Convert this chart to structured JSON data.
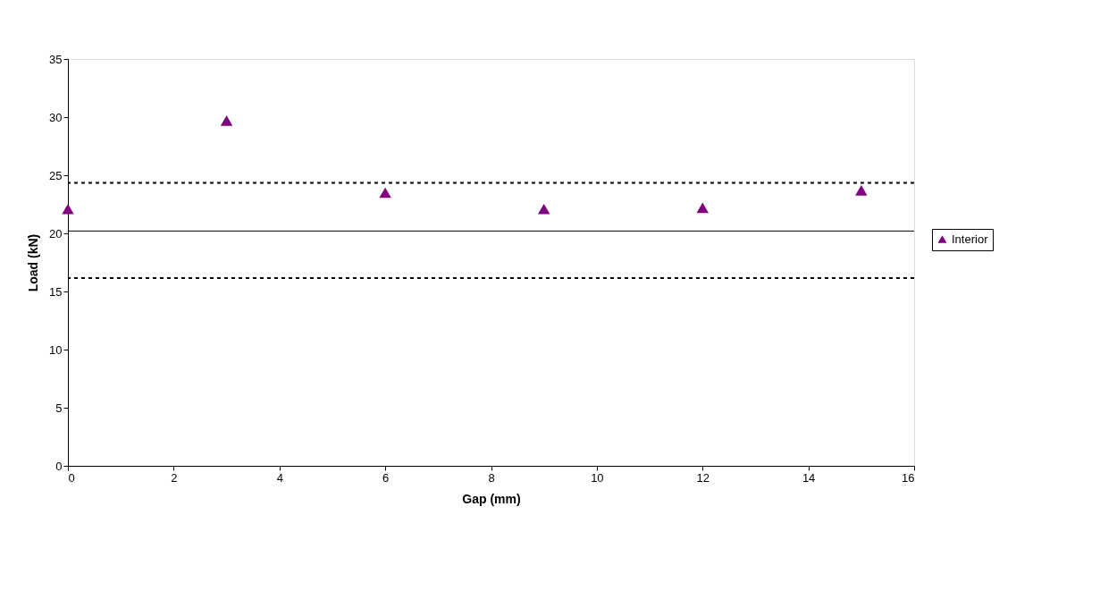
{
  "chart_data": {
    "type": "scatter",
    "xlabel": "Gap (mm)",
    "ylabel": "Load (kN)",
    "x": [
      0,
      3,
      6,
      9,
      12,
      15
    ],
    "series": [
      {
        "name": "Interior",
        "color": "#800080",
        "values": [
          22.1,
          29.7,
          23.5,
          22.1,
          22.2,
          23.7
        ]
      }
    ],
    "marker": "triangle",
    "xlim": [
      0,
      16
    ],
    "xticks": [
      0,
      2,
      4,
      6,
      8,
      10,
      12,
      14,
      16
    ],
    "ylim": [
      0,
      35
    ],
    "yticks": [
      0,
      5,
      10,
      15,
      20,
      25,
      30,
      35
    ],
    "ref_lines": [
      {
        "axis": "y",
        "value": 20.2,
        "line_style": "solid",
        "color": "#000000"
      },
      {
        "axis": "y",
        "value": 24.35,
        "line_style": "dotted",
        "color": "#000000"
      },
      {
        "axis": "y",
        "value": 16.15,
        "line_style": "dotted",
        "color": "#000000"
      }
    ],
    "grid": false,
    "legend": "right"
  }
}
